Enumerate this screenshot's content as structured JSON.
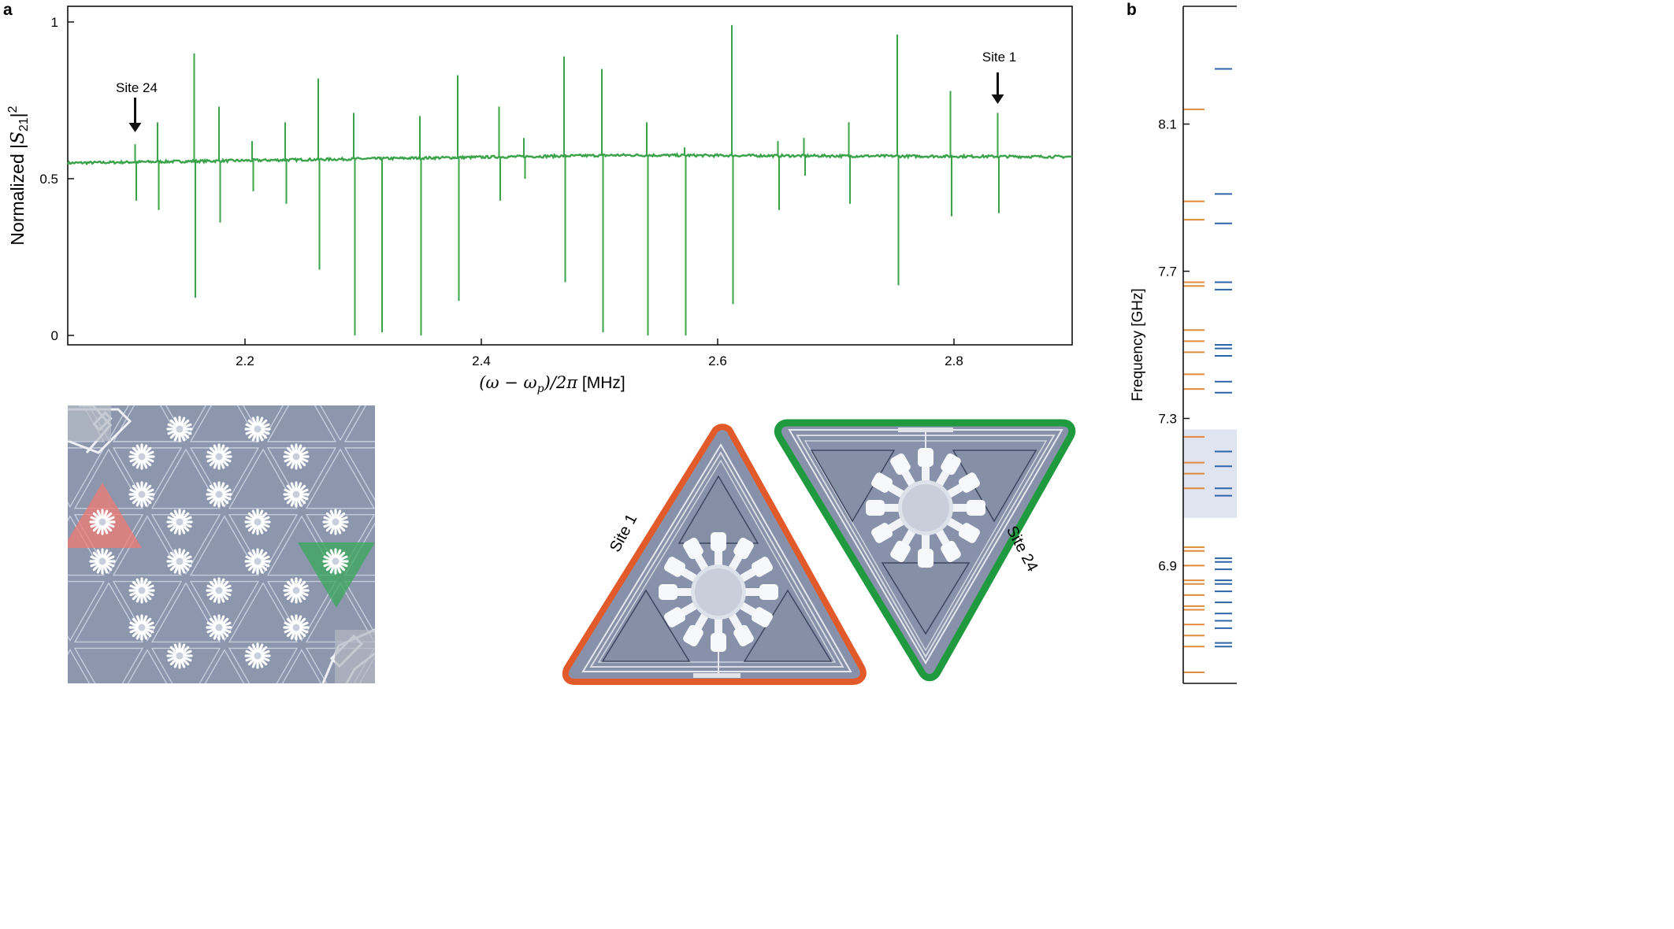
{
  "panels": {
    "a": "a",
    "b": "b"
  },
  "colors": {
    "trace": "#3aa34a",
    "site1": "#e25a2a",
    "site24": "#1f9a3f",
    "band": "#dfe4f0",
    "orange_level": "#e08a3a",
    "blue_level": "#2d63a8",
    "chip": "#8c96ad"
  },
  "chart_data": [
    {
      "type": "line",
      "xlabel": "(ω − ωp)/2π [MHz]",
      "ylabel": "Normalized |S21|²",
      "xlim": [
        2.05,
        2.9
      ],
      "ylim": [
        -0.03,
        1.05
      ],
      "xticks": [
        "2.2",
        "2.4",
        "2.6",
        "2.8"
      ],
      "xtick_values": [
        2.2,
        2.4,
        2.6,
        2.8
      ],
      "yticks": [
        "0",
        "0.5",
        "1"
      ],
      "ytick_values": [
        0,
        0.5,
        1
      ],
      "grid": false,
      "baseline": {
        "start": 0.55,
        "mid": 0.575,
        "end": 0.57
      },
      "resonances": [
        {
          "x": 2.107,
          "max": 0.61,
          "min": 0.43
        },
        {
          "x": 2.126,
          "max": 0.68,
          "min": 0.4
        },
        {
          "x": 2.157,
          "max": 0.9,
          "min": 0.12
        },
        {
          "x": 2.178,
          "max": 0.73,
          "min": 0.36
        },
        {
          "x": 2.206,
          "max": 0.62,
          "min": 0.46
        },
        {
          "x": 2.234,
          "max": 0.68,
          "min": 0.42
        },
        {
          "x": 2.262,
          "max": 0.82,
          "min": 0.21
        },
        {
          "x": 2.292,
          "max": 0.71,
          "min": 0.0
        },
        {
          "x": 2.315,
          "max": 0.57,
          "min": 0.01
        },
        {
          "x": 2.348,
          "max": 0.7,
          "min": 0.0
        },
        {
          "x": 2.38,
          "max": 0.83,
          "min": 0.11
        },
        {
          "x": 2.415,
          "max": 0.73,
          "min": 0.43
        },
        {
          "x": 2.436,
          "max": 0.63,
          "min": 0.5
        },
        {
          "x": 2.47,
          "max": 0.89,
          "min": 0.17
        },
        {
          "x": 2.502,
          "max": 0.85,
          "min": 0.01
        },
        {
          "x": 2.54,
          "max": 0.68,
          "min": 0.0
        },
        {
          "x": 2.572,
          "max": 0.6,
          "min": 0.0
        },
        {
          "x": 2.612,
          "max": 0.99,
          "min": 0.1
        },
        {
          "x": 2.651,
          "max": 0.62,
          "min": 0.4
        },
        {
          "x": 2.673,
          "max": 0.63,
          "min": 0.51
        },
        {
          "x": 2.711,
          "max": 0.68,
          "min": 0.42
        },
        {
          "x": 2.752,
          "max": 0.96,
          "min": 0.16
        },
        {
          "x": 2.797,
          "max": 0.78,
          "min": 0.38
        },
        {
          "x": 2.837,
          "max": 0.71,
          "min": 0.39
        }
      ],
      "annotations": [
        {
          "text": "Site 24",
          "x": 2.107
        },
        {
          "text": "Site 1",
          "x": 2.837
        }
      ]
    },
    {
      "type": "eventplot",
      "ylabel": "Frequency [GHz]",
      "ylim": [
        6.58,
        8.42
      ],
      "yticks": [
        "6.9",
        "7.3",
        "7.7",
        "8.1"
      ],
      "ytick_values": [
        6.9,
        7.3,
        7.7,
        8.1
      ],
      "highlight_band": [
        7.03,
        7.27
      ],
      "levels_left": [
        8.14,
        7.89,
        7.84,
        7.67,
        7.66,
        7.54,
        7.51,
        7.48,
        7.42,
        7.38,
        7.25,
        7.18,
        7.15,
        7.11,
        6.95,
        6.94,
        6.9,
        6.86,
        6.85,
        6.82,
        6.79,
        6.78,
        6.74,
        6.71,
        6.68,
        6.61
      ],
      "levels_right": [
        8.25,
        7.91,
        7.83,
        7.67,
        7.65,
        7.5,
        7.49,
        7.47,
        7.4,
        7.37,
        7.21,
        7.17,
        7.11,
        7.09,
        6.92,
        6.91,
        6.89,
        6.86,
        6.85,
        6.83,
        6.8,
        6.77,
        6.75,
        6.73,
        6.69,
        6.68
      ]
    }
  ],
  "micrographs": {
    "site1_label": "Site 1",
    "site24_label": "Site 24"
  }
}
